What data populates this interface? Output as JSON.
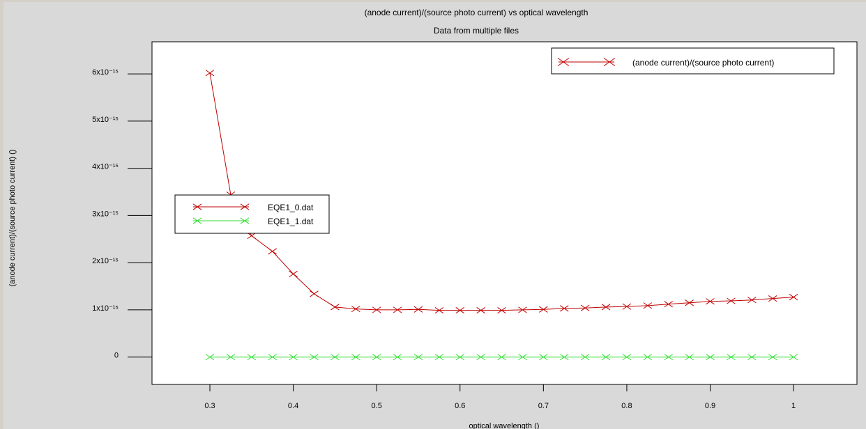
{
  "chart_data": {
    "type": "line",
    "title": "(anode current)/(source photo current) vs optical wavelength",
    "subtitle": "Data from multiple files",
    "xlabel": "optical wavelength ()",
    "ylabel": "(anode current)/(source photo current) ()",
    "annotation": "(anode current)/(source photo current)",
    "x": [
      0.3,
      0.325,
      0.35,
      0.375,
      0.4,
      0.425,
      0.45,
      0.475,
      0.5,
      0.525,
      0.55,
      0.575,
      0.6,
      0.625,
      0.65,
      0.675,
      0.7,
      0.725,
      0.75,
      0.775,
      0.8,
      0.825,
      0.85,
      0.875,
      0.9,
      0.925,
      0.95,
      0.975,
      1.0
    ],
    "series": [
      {
        "name": "EQE1_0.dat",
        "color": "#c00000",
        "values": [
          6.02e-15,
          3.44e-15,
          2.57e-15,
          2.24e-15,
          1.76e-15,
          1.34e-15,
          1.06e-15,
          1.02e-15,
          1e-15,
          1e-15,
          1.01e-15,
          9.9e-16,
          9.9e-16,
          9.9e-16,
          9.9e-16,
          1e-15,
          1.01e-15,
          1.03e-15,
          1.04e-15,
          1.06e-15,
          1.07e-15,
          1.09e-15,
          1.12e-15,
          1.15e-15,
          1.18e-15,
          1.19e-15,
          1.21e-15,
          1.24e-15,
          1.27e-15
        ]
      },
      {
        "name": "EQE1_1.dat",
        "color": "#33dd33",
        "values": [
          0,
          0,
          0,
          0,
          0,
          0,
          0,
          0,
          0,
          0,
          0,
          0,
          0,
          0,
          0,
          0,
          0,
          0,
          0,
          0,
          0,
          0,
          0,
          0,
          0,
          0,
          0,
          0,
          0
        ]
      }
    ],
    "xlim": [
      0.2306,
      1.076
    ],
    "xticks": [
      0.3,
      0.4,
      0.5,
      0.6,
      0.7,
      0.8,
      0.9,
      1
    ],
    "ylim": [
      -5.8e-16,
      6.68e-15
    ],
    "yticks": [
      0,
      {
        "value": 1e-15,
        "label": "1x10⁻¹⁵"
      },
      {
        "value": 2e-15,
        "label": "2x10⁻¹⁵"
      },
      {
        "value": 3e-15,
        "label": "3x10⁻¹⁵"
      },
      {
        "value": 4e-15,
        "label": "4x10⁻¹⁵"
      },
      {
        "value": 5e-15,
        "label": "5x10⁻¹⁵"
      },
      {
        "value": 6e-15,
        "label": "6x10⁻¹⁵"
      }
    ]
  }
}
